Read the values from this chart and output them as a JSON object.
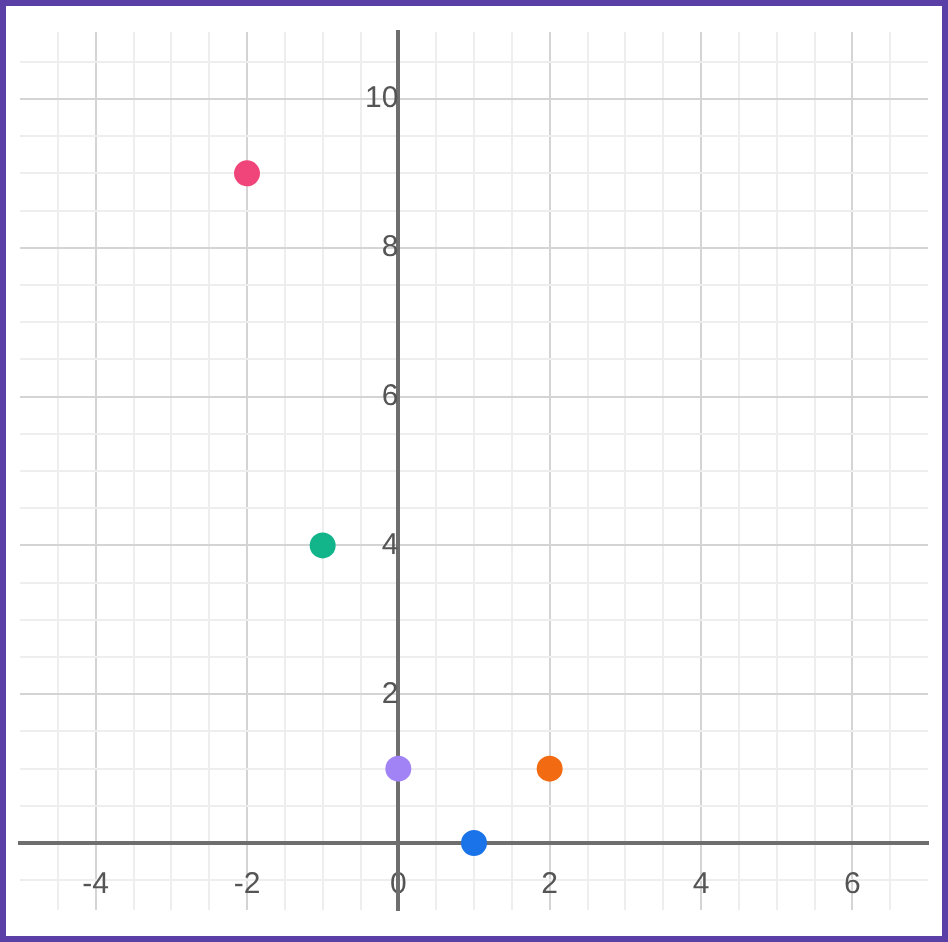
{
  "chart_data": {
    "type": "scatter",
    "x": [
      -2,
      -1,
      0,
      1,
      2
    ],
    "values": [
      9,
      4,
      1,
      0,
      1
    ],
    "colors": [
      "#f0457a",
      "#12b48a",
      "#a183f5",
      "#1a73e8",
      "#f26b12"
    ],
    "xlim": [
      -5,
      7
    ],
    "ylim": [
      -0.9,
      10.9
    ],
    "xticks": [
      {
        "value": -4.5,
        "label": null
      },
      -4,
      {
        "value": -3.5,
        "label": null
      },
      {
        "value": -3,
        "label": null
      },
      {
        "value": -2.5,
        "label": null
      },
      -2,
      {
        "value": -1.5,
        "label": null
      },
      {
        "value": -1,
        "label": null
      },
      {
        "value": -0.5,
        "label": null
      },
      0,
      {
        "value": 0.5,
        "label": null
      },
      {
        "value": 1,
        "label": null
      },
      {
        "value": 1.5,
        "label": null
      },
      2,
      {
        "value": 2.5,
        "label": null
      },
      {
        "value": 3,
        "label": null
      },
      {
        "value": 3.5,
        "label": null
      },
      4,
      {
        "value": 4.5,
        "label": null
      },
      {
        "value": 5,
        "label": null
      },
      {
        "value": 5.5,
        "label": null
      },
      6,
      {
        "value": 6.5,
        "label": null
      }
    ],
    "yticks": [
      {
        "value": -0.5,
        "label": null
      },
      {
        "value": 0,
        "label": null
      },
      {
        "value": 0.5,
        "label": null
      },
      {
        "value": 1,
        "label": null
      },
      {
        "value": 1.5,
        "label": null
      },
      2,
      {
        "value": 2.5,
        "label": null
      },
      {
        "value": 3,
        "label": null
      },
      {
        "value": 3.5,
        "label": null
      },
      4,
      {
        "value": 4.5,
        "label": null
      },
      {
        "value": 5,
        "label": null
      },
      {
        "value": 5.5,
        "label": null
      },
      6,
      {
        "value": 6.5,
        "label": null
      },
      {
        "value": 7,
        "label": null
      },
      {
        "value": 7.5,
        "label": null
      },
      8,
      {
        "value": 8.5,
        "label": null
      },
      {
        "value": 9,
        "label": null
      },
      {
        "value": 9.5,
        "label": null
      },
      10,
      {
        "value": 10.5,
        "label": null
      }
    ],
    "grid": true,
    "legend": false,
    "marker": "circle"
  }
}
